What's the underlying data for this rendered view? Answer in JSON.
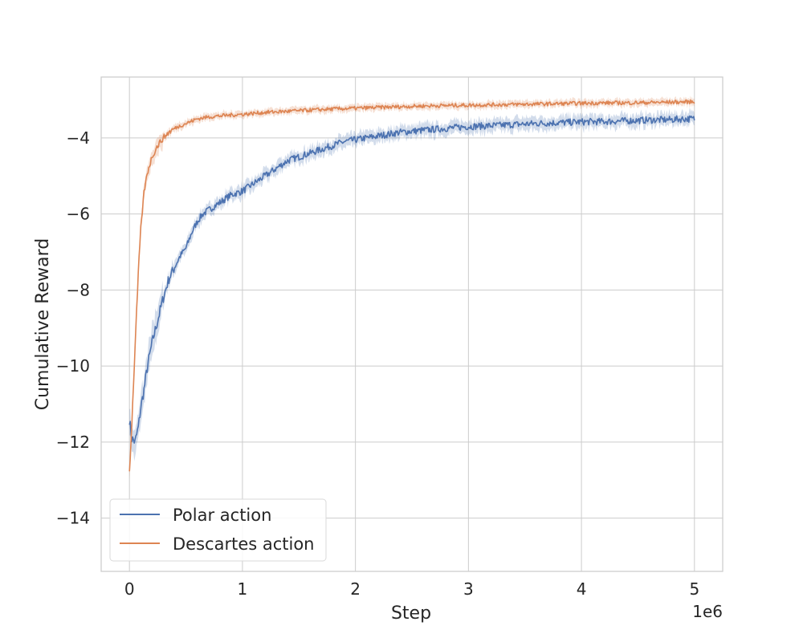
{
  "chart_data": {
    "type": "line",
    "xlabel": "Step",
    "ylabel": "Cumulative Reward",
    "x_offset_label": "1e6",
    "x_scale": 1000000,
    "xlim": [
      -250000,
      5250000
    ],
    "ylim": [
      -15.4,
      -2.4
    ],
    "x_ticks": [
      0,
      1000000,
      2000000,
      3000000,
      4000000,
      5000000
    ],
    "x_tick_labels": [
      "0",
      "1",
      "2",
      "3",
      "4",
      "5"
    ],
    "y_ticks": [
      -14,
      -12,
      -10,
      -8,
      -6,
      -4
    ],
    "y_tick_labels": [
      "−14",
      "−12",
      "−10",
      "−8",
      "−6",
      "−4"
    ],
    "grid": true,
    "legend_position": "lower-left",
    "series": [
      {
        "name": "Polar action",
        "color": "#4c72b0",
        "x": [
          0,
          20000,
          50000,
          80000,
          100000,
          130000,
          160000,
          200000,
          250000,
          300000,
          350000,
          400000,
          450000,
          500000,
          550000,
          600000,
          650000,
          700000,
          750000,
          800000,
          900000,
          1000000,
          1100000,
          1200000,
          1300000,
          1400000,
          1500000,
          1600000,
          1700000,
          1800000,
          1900000,
          2000000,
          2200000,
          2400000,
          2600000,
          2800000,
          3000000,
          3200000,
          3400000,
          3600000,
          3800000,
          4000000,
          4200000,
          4400000,
          4600000,
          4800000,
          4900000,
          5000000
        ],
        "y": [
          -11.4,
          -11.9,
          -12.0,
          -11.6,
          -11.1,
          -10.6,
          -10.0,
          -9.4,
          -8.8,
          -8.2,
          -7.7,
          -7.4,
          -7.1,
          -6.9,
          -6.5,
          -6.2,
          -6.0,
          -5.9,
          -5.8,
          -5.7,
          -5.5,
          -5.4,
          -5.2,
          -5.0,
          -4.8,
          -4.6,
          -4.5,
          -4.4,
          -4.3,
          -4.2,
          -4.1,
          -4.05,
          -3.95,
          -3.85,
          -3.8,
          -3.75,
          -3.7,
          -3.68,
          -3.65,
          -3.62,
          -3.6,
          -3.58,
          -3.57,
          -3.55,
          -3.53,
          -3.52,
          -3.5,
          -3.5
        ]
      },
      {
        "name": "Descartes action",
        "color": "#dd8452",
        "x": [
          0,
          20000,
          50000,
          80000,
          100000,
          130000,
          160000,
          200000,
          250000,
          300000,
          350000,
          400000,
          450000,
          500000,
          550000,
          600000,
          700000,
          800000,
          900000,
          1000000,
          1200000,
          1400000,
          1600000,
          1800000,
          2000000,
          2200000,
          2400000,
          2600000,
          2800000,
          3000000,
          3200000,
          3400000,
          3600000,
          3800000,
          4000000,
          4200000,
          4400000,
          4600000,
          4800000,
          5000000
        ],
        "y": [
          -12.8,
          -11.6,
          -9.5,
          -7.5,
          -6.4,
          -5.4,
          -4.9,
          -4.5,
          -4.2,
          -4.0,
          -3.85,
          -3.75,
          -3.68,
          -3.62,
          -3.56,
          -3.5,
          -3.45,
          -3.42,
          -3.4,
          -3.38,
          -3.33,
          -3.3,
          -3.27,
          -3.24,
          -3.22,
          -3.2,
          -3.18,
          -3.16,
          -3.15,
          -3.14,
          -3.13,
          -3.12,
          -3.11,
          -3.1,
          -3.09,
          -3.08,
          -3.08,
          -3.07,
          -3.06,
          -3.05
        ]
      }
    ]
  }
}
